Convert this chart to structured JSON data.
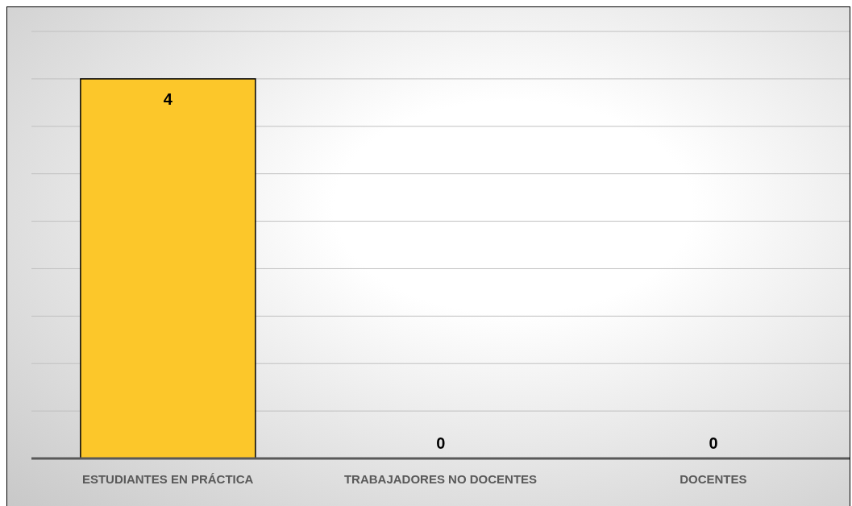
{
  "chart_data": {
    "type": "bar",
    "categories": [
      "ESTUDIANTES EN PRÁCTICA",
      "TRABAJADORES NO DOCENTES",
      "DOCENTES"
    ],
    "values": [
      4,
      0,
      0
    ],
    "color": "#fcc72a",
    "ylim": [
      0,
      4.5
    ],
    "yticks": [
      {
        "value": 0,
        "label": null
      },
      {
        "value": 0.5,
        "label": null
      },
      {
        "value": 1,
        "label": null
      },
      {
        "value": 1.5,
        "label": null
      },
      {
        "value": 2,
        "label": null
      },
      {
        "value": 2.5,
        "label": null
      },
      {
        "value": 3,
        "label": null
      },
      {
        "value": 3.5,
        "label": null
      },
      {
        "value": 4,
        "label": null
      },
      {
        "value": 4.5,
        "label": null
      }
    ],
    "grid": "y",
    "data_labels": true,
    "tick_labels": "x"
  }
}
